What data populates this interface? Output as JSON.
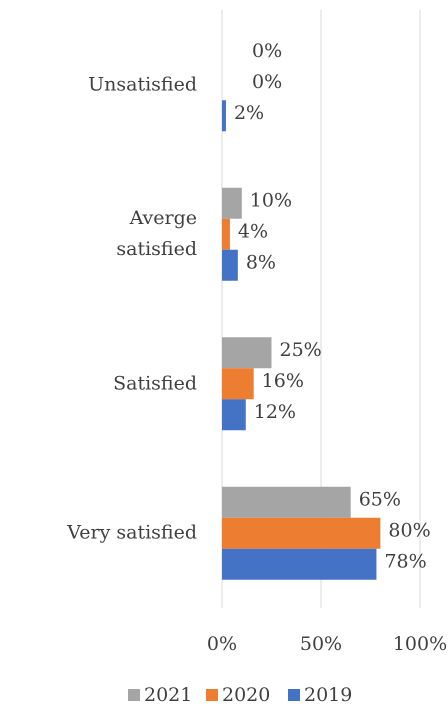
{
  "chart_data": {
    "type": "hbar",
    "categories": [
      "Unsatisfied",
      "Averge satisfied",
      "Satisfied",
      "Very satisfied"
    ],
    "series": [
      {
        "name": "2021",
        "color": "#a5a5a5",
        "values": [
          0,
          10,
          25,
          65
        ],
        "value_labels": [
          "0%",
          "10%",
          "25%",
          "65%"
        ]
      },
      {
        "name": "2020",
        "color": "#ed7d31",
        "values": [
          0,
          4,
          16,
          80
        ],
        "value_labels": [
          "0%",
          "4%",
          "16%",
          "80%"
        ]
      },
      {
        "name": "2019",
        "color": "#4472c4",
        "values": [
          2,
          8,
          12,
          78
        ],
        "value_labels": [
          "2%",
          "8%",
          "12%",
          "78%"
        ]
      }
    ],
    "xlim": [
      0,
      100
    ],
    "xticks": [
      {
        "value": 0,
        "label": "0%"
      },
      {
        "value": 50,
        "label": "50%"
      },
      {
        "value": 100,
        "label": "100%"
      }
    ],
    "grid": true,
    "legend": "bottom"
  }
}
